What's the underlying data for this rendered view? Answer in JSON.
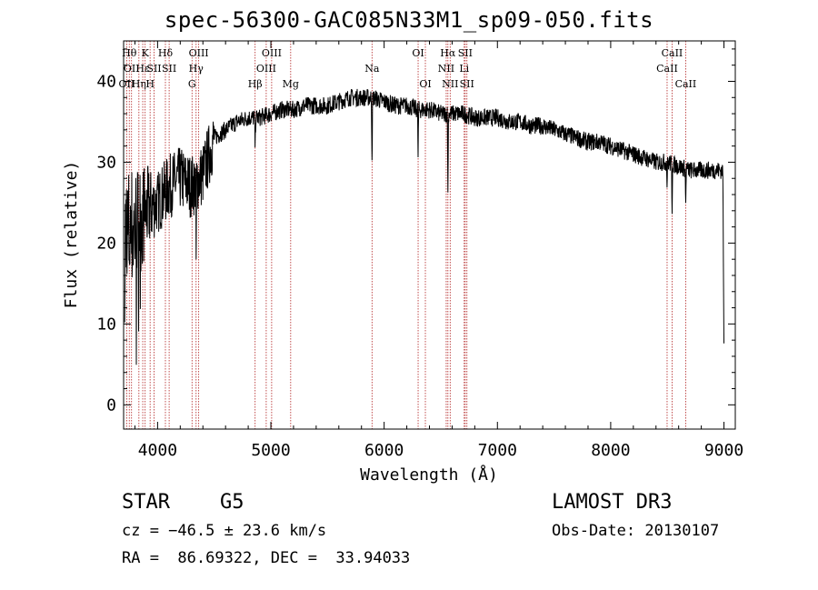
{
  "chart_data": {
    "type": "line",
    "title": "spec-56300-GAC085N33M1_sp09-050.fits",
    "xlabel": "Wavelength (Å)",
    "ylabel": "Flux (relative)",
    "xlim": [
      3700,
      9100
    ],
    "ylim": [
      -3,
      45
    ],
    "xticks": [
      4000,
      5000,
      6000,
      7000,
      8000,
      9000
    ],
    "yticks": [
      0,
      10,
      20,
      30,
      40
    ],
    "lines": [
      {
        "wl": 3727,
        "label": "OII",
        "row": 3
      },
      {
        "wl": 3750,
        "label": "Hθ",
        "row": 1
      },
      {
        "wl": 3770,
        "label": "OII",
        "row": 2
      },
      {
        "wl": 3835,
        "label": "Hη",
        "row": 3
      },
      {
        "wl": 3869,
        "label": "Hε",
        "row": 2
      },
      {
        "wl": 3890,
        "label": "K",
        "row": 1
      },
      {
        "wl": 3934,
        "label": "H",
        "row": 3
      },
      {
        "wl": 3969,
        "label": "SII",
        "row": 2
      },
      {
        "wl": 4069,
        "label": "Hδ",
        "row": 1
      },
      {
        "wl": 4102,
        "label": "SII",
        "row": 2
      },
      {
        "wl": 4304,
        "label": "G",
        "row": 3
      },
      {
        "wl": 4340,
        "label": "Hγ",
        "row": 2
      },
      {
        "wl": 4363,
        "label": "OIII",
        "row": 1
      },
      {
        "wl": 4861,
        "label": "Hβ",
        "row": 3
      },
      {
        "wl": 4959,
        "label": "OIII",
        "row": 2
      },
      {
        "wl": 5007,
        "label": "OIII",
        "row": 1
      },
      {
        "wl": 5175,
        "label": "Mg",
        "row": 3
      },
      {
        "wl": 5893,
        "label": "Na",
        "row": 2
      },
      {
        "wl": 6300,
        "label": "OI",
        "row": 1
      },
      {
        "wl": 6364,
        "label": "OI",
        "row": 3
      },
      {
        "wl": 6548,
        "label": "NII",
        "row": 2
      },
      {
        "wl": 6563,
        "label": "Hα",
        "row": 1
      },
      {
        "wl": 6583,
        "label": "NII",
        "row": 3
      },
      {
        "wl": 6707,
        "label": "Li",
        "row": 2
      },
      {
        "wl": 6716,
        "label": "SII",
        "row": 1
      },
      {
        "wl": 6731,
        "label": "SII",
        "row": 3
      },
      {
        "wl": 8498,
        "label": "CaII",
        "row": 2
      },
      {
        "wl": 8542,
        "label": "CaII",
        "row": 1
      },
      {
        "wl": 8662,
        "label": "CaII",
        "row": 3
      }
    ],
    "spectrum_continuum": [
      [
        3700,
        20
      ],
      [
        3800,
        22
      ],
      [
        3900,
        24
      ],
      [
        4000,
        25
      ],
      [
        4100,
        27
      ],
      [
        4200,
        28
      ],
      [
        4300,
        27
      ],
      [
        4400,
        28.5
      ],
      [
        4500,
        33
      ],
      [
        4600,
        34
      ],
      [
        4700,
        35
      ],
      [
        4800,
        35.5
      ],
      [
        4900,
        35.5
      ],
      [
        5000,
        36
      ],
      [
        5100,
        36.5
      ],
      [
        5200,
        36.5
      ],
      [
        5300,
        37
      ],
      [
        5400,
        37
      ],
      [
        5500,
        37
      ],
      [
        5600,
        37.5
      ],
      [
        5700,
        38
      ],
      [
        5800,
        38
      ],
      [
        5900,
        38
      ],
      [
        6000,
        37.5
      ],
      [
        6100,
        37
      ],
      [
        6200,
        37
      ],
      [
        6300,
        36.5
      ],
      [
        6400,
        36.5
      ],
      [
        6500,
        36
      ],
      [
        6600,
        36
      ],
      [
        6700,
        36
      ],
      [
        6800,
        35.5
      ],
      [
        6900,
        35.5
      ],
      [
        7000,
        35.5
      ],
      [
        7100,
        35
      ],
      [
        7200,
        35
      ],
      [
        7300,
        34.5
      ],
      [
        7400,
        34.5
      ],
      [
        7500,
        34
      ],
      [
        7600,
        33.5
      ],
      [
        7700,
        33
      ],
      [
        7800,
        32.5
      ],
      [
        7900,
        32.5
      ],
      [
        8000,
        32
      ],
      [
        8100,
        31.5
      ],
      [
        8200,
        31
      ],
      [
        8300,
        30.5
      ],
      [
        8400,
        30
      ],
      [
        8500,
        30
      ],
      [
        8600,
        29.5
      ],
      [
        8700,
        29
      ],
      [
        8800,
        29
      ],
      [
        8900,
        29
      ],
      [
        9000,
        29
      ]
    ]
  },
  "info": {
    "objtype": "STAR",
    "subclass": "G5",
    "survey": "LAMOST DR3",
    "cz": "cz = −46.5 ± 23.6 km/s",
    "obsdate": "Obs-Date: 20130107",
    "radec": "RA =  86.69322, DEC =  33.94033"
  }
}
